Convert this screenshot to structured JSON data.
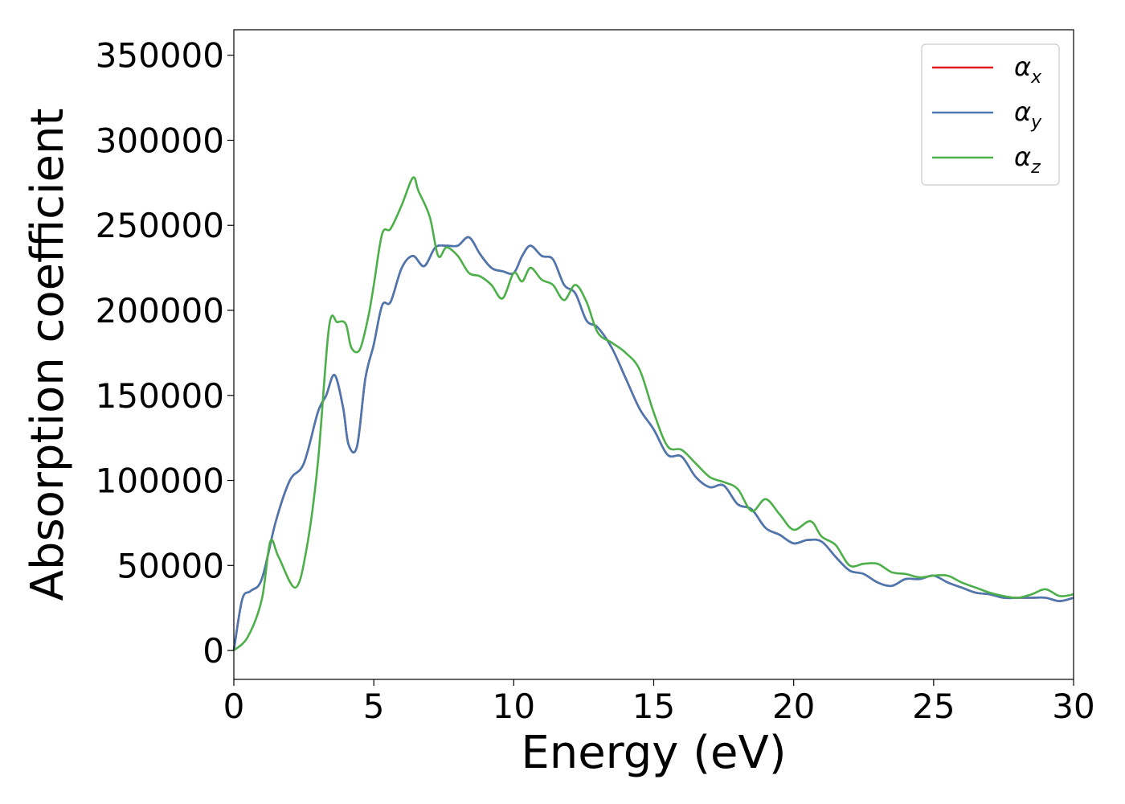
{
  "chart_data": {
    "type": "line",
    "title": "",
    "xlabel": "Energy (eV)",
    "ylabel": "Absorption coefficient",
    "xlim": [
      0,
      30
    ],
    "ylim": [
      -17000,
      365000
    ],
    "xticks": [
      0,
      5,
      10,
      15,
      20,
      25,
      30
    ],
    "yticks": [
      0,
      50000,
      100000,
      150000,
      200000,
      250000,
      300000,
      350000
    ],
    "grid": false,
    "legend_position": "top-right",
    "series": [
      {
        "name": "αx",
        "label_base": "α",
        "label_sub": "x",
        "color": "#e41a1c",
        "x": [
          0,
          0.3,
          0.6,
          1.0,
          1.5,
          2.0,
          2.5,
          3.0,
          3.3,
          3.6,
          3.9,
          4.1,
          4.4,
          4.7,
          5.0,
          5.3,
          5.6,
          6.0,
          6.4,
          6.8,
          7.2,
          7.6,
          8.0,
          8.4,
          8.8,
          9.2,
          9.6,
          10.0,
          10.3,
          10.6,
          11.0,
          11.4,
          11.8,
          12.2,
          12.6,
          13.0,
          13.5,
          14.0,
          14.5,
          15.0,
          15.5,
          16.0,
          16.5,
          17.0,
          17.5,
          18.0,
          18.5,
          19.0,
          19.5,
          20.0,
          20.5,
          21.0,
          21.5,
          22.0,
          22.5,
          23.0,
          23.5,
          24.0,
          24.5,
          25.0,
          25.5,
          26.0,
          26.5,
          27.0,
          27.5,
          28.0,
          28.5,
          29.0,
          29.5,
          30.0
        ],
        "y": [
          0,
          30000,
          35000,
          42000,
          76000,
          100000,
          110000,
          140000,
          150000,
          162000,
          143000,
          121000,
          120000,
          160000,
          180000,
          203000,
          205000,
          225000,
          232000,
          226000,
          237000,
          238000,
          238000,
          243000,
          233000,
          225000,
          223000,
          222000,
          232000,
          238000,
          232000,
          230000,
          215000,
          210000,
          194000,
          190000,
          178000,
          160000,
          142000,
          130000,
          115000,
          114000,
          102000,
          96000,
          97000,
          86000,
          83000,
          72000,
          68000,
          63000,
          65000,
          64000,
          55000,
          47000,
          45000,
          40000,
          38000,
          42000,
          42000,
          44000,
          40000,
          37000,
          34000,
          33000,
          31000,
          31000,
          31000,
          31000,
          29000,
          31000
        ]
      },
      {
        "name": "αy",
        "label_base": "α",
        "label_sub": "y",
        "color": "#4a78b0",
        "x": [
          0,
          0.3,
          0.6,
          1.0,
          1.5,
          2.0,
          2.5,
          3.0,
          3.3,
          3.6,
          3.9,
          4.1,
          4.4,
          4.7,
          5.0,
          5.3,
          5.6,
          6.0,
          6.4,
          6.8,
          7.2,
          7.6,
          8.0,
          8.4,
          8.8,
          9.2,
          9.6,
          10.0,
          10.3,
          10.6,
          11.0,
          11.4,
          11.8,
          12.2,
          12.6,
          13.0,
          13.5,
          14.0,
          14.5,
          15.0,
          15.5,
          16.0,
          16.5,
          17.0,
          17.5,
          18.0,
          18.5,
          19.0,
          19.5,
          20.0,
          20.5,
          21.0,
          21.5,
          22.0,
          22.5,
          23.0,
          23.5,
          24.0,
          24.5,
          25.0,
          25.5,
          26.0,
          26.5,
          27.0,
          27.5,
          28.0,
          28.5,
          29.0,
          29.5,
          30.0
        ],
        "y": [
          0,
          30000,
          35000,
          42000,
          76000,
          100000,
          110000,
          140000,
          150000,
          162000,
          143000,
          121000,
          120000,
          160000,
          180000,
          203000,
          205000,
          225000,
          232000,
          226000,
          237000,
          238000,
          238000,
          243000,
          233000,
          225000,
          223000,
          222000,
          232000,
          238000,
          232000,
          230000,
          215000,
          210000,
          194000,
          190000,
          178000,
          160000,
          142000,
          130000,
          115000,
          114000,
          102000,
          96000,
          97000,
          86000,
          83000,
          72000,
          68000,
          63000,
          65000,
          64000,
          55000,
          47000,
          45000,
          40000,
          38000,
          42000,
          42000,
          44000,
          40000,
          37000,
          34000,
          33000,
          31000,
          31000,
          31000,
          31000,
          29000,
          31000
        ]
      },
      {
        "name": "αz",
        "label_base": "α",
        "label_sub": "z",
        "color": "#4daf4a",
        "x": [
          0,
          0.5,
          1.0,
          1.3,
          1.6,
          2.2,
          2.6,
          3.0,
          3.4,
          3.7,
          4.0,
          4.2,
          4.5,
          4.8,
          5.0,
          5.3,
          5.6,
          6.0,
          6.4,
          6.6,
          7.0,
          7.3,
          7.6,
          8.0,
          8.4,
          8.8,
          9.2,
          9.6,
          10.0,
          10.3,
          10.6,
          11.0,
          11.4,
          11.8,
          12.2,
          12.6,
          13.0,
          13.5,
          14.0,
          14.5,
          15.0,
          15.5,
          16.0,
          16.5,
          17.0,
          17.5,
          18.0,
          18.5,
          19.0,
          19.5,
          20.0,
          20.6,
          21.0,
          21.5,
          22.0,
          22.5,
          23.0,
          23.5,
          24.0,
          24.5,
          25.0,
          25.5,
          26.0,
          26.5,
          27.0,
          27.5,
          28.0,
          28.5,
          29.0,
          29.5,
          30.0
        ],
        "y": [
          0,
          8000,
          30000,
          64000,
          55000,
          37000,
          60000,
          110000,
          190000,
          193000,
          192000,
          178000,
          177000,
          196000,
          215000,
          245000,
          248000,
          262000,
          278000,
          270000,
          255000,
          232000,
          237000,
          232000,
          222000,
          220000,
          215000,
          207000,
          222000,
          217000,
          225000,
          218000,
          215000,
          206000,
          215000,
          205000,
          187000,
          181000,
          175000,
          165000,
          140000,
          120000,
          118000,
          110000,
          102000,
          99000,
          95000,
          82000,
          89000,
          80000,
          71000,
          76000,
          67000,
          62000,
          50000,
          51000,
          51000,
          46000,
          45000,
          43000,
          44000,
          44000,
          40000,
          37000,
          34000,
          32000,
          31000,
          33000,
          36000,
          32000,
          33000
        ]
      }
    ]
  }
}
